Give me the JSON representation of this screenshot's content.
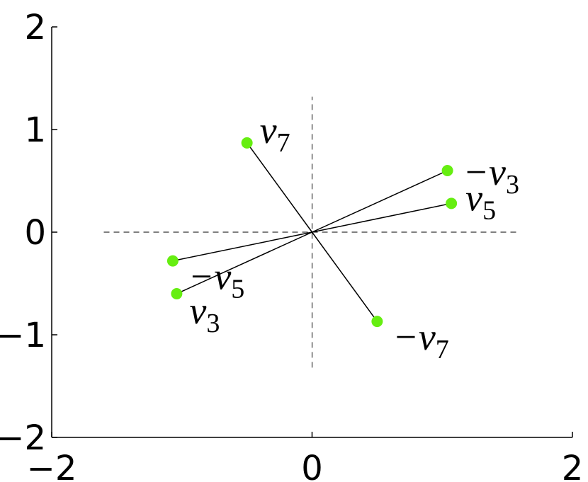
{
  "chart_data": {
    "type": "scatter",
    "x": [
      -0.5,
      0.5,
      1.04,
      -1.04,
      1.07,
      -1.07
    ],
    "values": [
      0.87,
      -0.87,
      0.6,
      -0.6,
      0.28,
      -0.28
    ],
    "labels": [
      "v",
      "−v",
      "−v",
      "v",
      "v",
      "−v"
    ],
    "label_subscripts": [
      "7",
      "7",
      "3",
      "3",
      "5",
      "5"
    ],
    "color": "#66ee11",
    "xlim": [
      -2,
      2
    ],
    "ylim": [
      -2,
      2
    ],
    "xticks": [
      {
        "value": -2,
        "label": "−2"
      },
      0,
      2
    ],
    "yticks": [
      {
        "value": -2,
        "label": "−2"
      },
      {
        "value": -1,
        "label": "−1"
      },
      0,
      1,
      2
    ],
    "dashed_axes": {
      "x": [
        -1.6,
        1.6
      ],
      "y": [
        -1.32,
        1.32
      ]
    }
  }
}
